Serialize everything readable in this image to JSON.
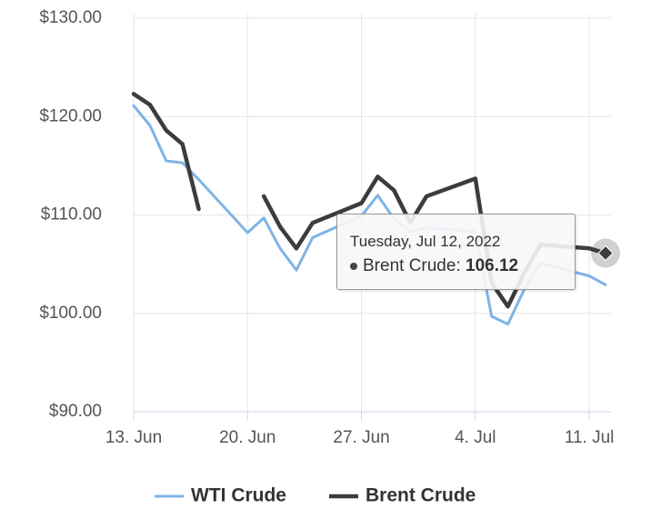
{
  "chart_data": {
    "type": "line",
    "x": [
      "2022-06-13",
      "2022-06-14",
      "2022-06-15",
      "2022-06-16",
      "2022-06-17",
      "2022-06-20",
      "2022-06-21",
      "2022-06-22",
      "2022-06-23",
      "2022-06-24",
      "2022-06-27",
      "2022-06-28",
      "2022-06-29",
      "2022-06-30",
      "2022-07-01",
      "2022-07-04",
      "2022-07-05",
      "2022-07-06",
      "2022-07-07",
      "2022-07-08",
      "2022-07-11",
      "2022-07-12"
    ],
    "series": [
      {
        "name": "WTI Crude",
        "color": "#7fb3e6",
        "width": 3,
        "values": [
          121.1,
          119.1,
          115.5,
          115.3,
          113.6,
          108.2,
          109.7,
          106.6,
          104.4,
          107.7,
          109.9,
          112.0,
          109.6,
          108.3,
          108.7,
          108.3,
          99.7,
          98.9,
          102.4,
          105.1,
          103.8,
          102.9
        ]
      },
      {
        "name": "Brent Crude",
        "color": "#3c3c40",
        "width": 4.5,
        "values": [
          122.3,
          121.2,
          118.6,
          117.2,
          110.6,
          null,
          111.9,
          108.8,
          106.6,
          109.2,
          111.2,
          113.9,
          112.5,
          109.2,
          111.9,
          113.7,
          103.1,
          100.7,
          104.1,
          107.0,
          106.6,
          106.12
        ]
      }
    ],
    "xlim": [
      "2022-06-13",
      "2022-07-12"
    ],
    "xticks": [
      {
        "value": "2022-06-13",
        "label": "13. Jun"
      },
      {
        "value": "2022-06-20",
        "label": "20. Jun"
      },
      {
        "value": "2022-06-27",
        "label": "27. Jun"
      },
      {
        "value": "2022-07-04",
        "label": "4. Jul"
      },
      {
        "value": "2022-07-11",
        "label": "11. Jul"
      }
    ],
    "ylim": [
      90,
      130
    ],
    "yticks": [
      {
        "value": 90,
        "label": "$90.00"
      },
      {
        "value": 100,
        "label": "$100.00"
      },
      {
        "value": 110,
        "label": "$110.00"
      },
      {
        "value": 120,
        "label": "$120.00"
      },
      {
        "value": 130,
        "label": "$130.00"
      }
    ],
    "grid": true,
    "legend": "bottom",
    "tooltip": {
      "date": "Tuesday, Jul 12, 2022",
      "label": "Brent Crude:",
      "value": 106.12,
      "series": 1
    }
  }
}
